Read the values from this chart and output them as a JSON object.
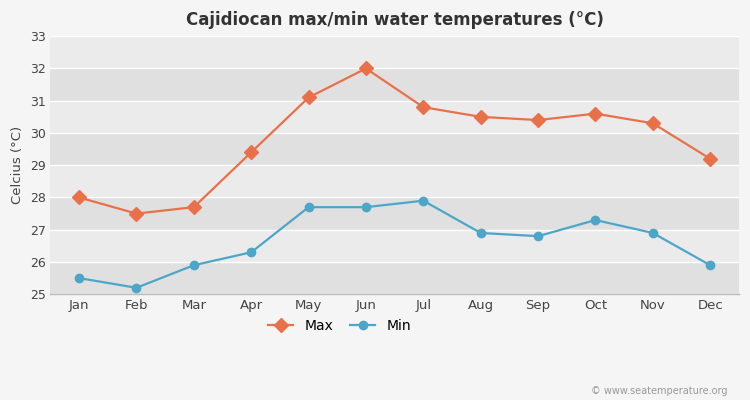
{
  "title": "Cajidiocan max/min water temperatures (°C)",
  "ylabel": "Celcius (°C)",
  "months": [
    "Jan",
    "Feb",
    "Mar",
    "Apr",
    "May",
    "Jun",
    "Jul",
    "Aug",
    "Sep",
    "Oct",
    "Nov",
    "Dec"
  ],
  "max_temps": [
    28.0,
    27.5,
    27.7,
    29.4,
    31.1,
    32.0,
    30.8,
    30.5,
    30.4,
    30.6,
    30.3,
    29.2
  ],
  "min_temps": [
    25.5,
    25.2,
    25.9,
    26.3,
    27.7,
    27.7,
    27.9,
    26.9,
    26.8,
    27.3,
    26.9,
    25.9
  ],
  "max_color": "#e8714a",
  "min_color": "#4da6c8",
  "outer_bg": "#f5f5f5",
  "band_light": "#ebebeb",
  "band_dark": "#e0e0e0",
  "ylim": [
    25,
    33
  ],
  "yticks": [
    25,
    26,
    27,
    28,
    29,
    30,
    31,
    32,
    33
  ],
  "watermark": "© www.seatemperature.org",
  "legend_labels": [
    "Max",
    "Min"
  ]
}
